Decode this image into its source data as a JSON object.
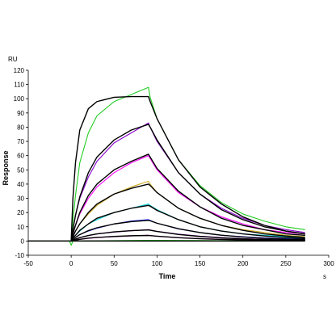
{
  "chart_data": {
    "type": "line",
    "title": "",
    "xlabel": "Time",
    "ylabel": "Response",
    "y_unit": "RU",
    "x_unit": "s",
    "xlim": [
      -50,
      300
    ],
    "ylim": [
      -10,
      120
    ],
    "x_ticks": [
      -50,
      0,
      50,
      100,
      150,
      200,
      250,
      300
    ],
    "y_ticks": [
      -10,
      0,
      10,
      20,
      30,
      40,
      50,
      60,
      70,
      80,
      90,
      100,
      110,
      120
    ],
    "grid": false,
    "legend": "none",
    "association_start": 0,
    "dissociation_start": 90,
    "end_time": 272,
    "colors": {
      "fit": "#000000",
      "series": [
        "#22cc22",
        "#8800cc",
        "#ff00ff",
        "#ccaa22",
        "#00cccc",
        "#2222ff",
        "#8800cc",
        "#ff00ff",
        "#22cc22"
      ]
    },
    "series": [
      {
        "values": [
          [
            0,
            0
          ],
          [
            2,
            14
          ],
          [
            5,
            32
          ],
          [
            10,
            55
          ],
          [
            20,
            76
          ],
          [
            30,
            88
          ],
          [
            50,
            98
          ],
          [
            70,
            103
          ],
          [
            90,
            108
          ],
          [
            92,
            101
          ],
          [
            100,
            86
          ],
          [
            125,
            57
          ],
          [
            150,
            39
          ],
          [
            175,
            27
          ],
          [
            200,
            19
          ],
          [
            225,
            14
          ],
          [
            250,
            10
          ],
          [
            272,
            8
          ]
        ]
      },
      {
        "values": [
          [
            0,
            0
          ],
          [
            2,
            8
          ],
          [
            5,
            18
          ],
          [
            10,
            30
          ],
          [
            20,
            45
          ],
          [
            30,
            56
          ],
          [
            50,
            69
          ],
          [
            70,
            76
          ],
          [
            90,
            83
          ],
          [
            92,
            80
          ],
          [
            100,
            70
          ],
          [
            125,
            48
          ],
          [
            150,
            33
          ],
          [
            175,
            23
          ],
          [
            200,
            16
          ],
          [
            225,
            11
          ],
          [
            250,
            8
          ],
          [
            272,
            6
          ]
        ]
      },
      {
        "values": [
          [
            0,
            0
          ],
          [
            2,
            5
          ],
          [
            5,
            11
          ],
          [
            10,
            19
          ],
          [
            20,
            30
          ],
          [
            30,
            38
          ],
          [
            50,
            48
          ],
          [
            70,
            55
          ],
          [
            90,
            60
          ],
          [
            92,
            58
          ],
          [
            100,
            50
          ],
          [
            125,
            34
          ],
          [
            150,
            24
          ],
          [
            175,
            17
          ],
          [
            200,
            12
          ],
          [
            225,
            8
          ],
          [
            250,
            6
          ],
          [
            272,
            5
          ]
        ]
      },
      {
        "values": [
          [
            0,
            0
          ],
          [
            2,
            3
          ],
          [
            5,
            7
          ],
          [
            10,
            12
          ],
          [
            20,
            19
          ],
          [
            30,
            25
          ],
          [
            50,
            33
          ],
          [
            70,
            38
          ],
          [
            90,
            42
          ],
          [
            92,
            40
          ],
          [
            100,
            34
          ],
          [
            125,
            23
          ],
          [
            150,
            16
          ],
          [
            175,
            11
          ],
          [
            200,
            8
          ],
          [
            225,
            6
          ],
          [
            250,
            4
          ],
          [
            272,
            3
          ]
        ]
      },
      {
        "values": [
          [
            0,
            0
          ],
          [
            2,
            2
          ],
          [
            5,
            4
          ],
          [
            10,
            7
          ],
          [
            20,
            12
          ],
          [
            30,
            15
          ],
          [
            50,
            20
          ],
          [
            70,
            23
          ],
          [
            90,
            26
          ],
          [
            92,
            25
          ],
          [
            100,
            22
          ],
          [
            125,
            15
          ],
          [
            150,
            10
          ],
          [
            175,
            7
          ],
          [
            200,
            5
          ],
          [
            225,
            4
          ],
          [
            250,
            3
          ],
          [
            272,
            2
          ]
        ]
      },
      {
        "values": [
          [
            0,
            0
          ],
          [
            2,
            1
          ],
          [
            5,
            2.5
          ],
          [
            10,
            4.5
          ],
          [
            20,
            7
          ],
          [
            30,
            9
          ],
          [
            50,
            12
          ],
          [
            70,
            14
          ],
          [
            90,
            15
          ],
          [
            92,
            14.5
          ],
          [
            100,
            12.5
          ],
          [
            125,
            8.5
          ],
          [
            150,
            6
          ],
          [
            175,
            4
          ],
          [
            200,
            3
          ],
          [
            225,
            2.2
          ],
          [
            250,
            1.6
          ],
          [
            272,
            1.2
          ]
        ]
      },
      {
        "values": [
          [
            0,
            0
          ],
          [
            2,
            0.6
          ],
          [
            5,
            1.3
          ],
          [
            10,
            2.3
          ],
          [
            20,
            3.8
          ],
          [
            30,
            4.9
          ],
          [
            50,
            6.3
          ],
          [
            70,
            7.2
          ],
          [
            90,
            8
          ],
          [
            92,
            7.7
          ],
          [
            100,
            6.8
          ],
          [
            125,
            4.8
          ],
          [
            150,
            3.4
          ],
          [
            175,
            2.4
          ],
          [
            200,
            1.7
          ],
          [
            225,
            1.2
          ],
          [
            250,
            0.9
          ],
          [
            272,
            0.7
          ]
        ]
      },
      {
        "values": [
          [
            0,
            0
          ],
          [
            2,
            0.3
          ],
          [
            5,
            0.7
          ],
          [
            10,
            1.2
          ],
          [
            20,
            1.9
          ],
          [
            30,
            2.4
          ],
          [
            50,
            3.1
          ],
          [
            70,
            3.6
          ],
          [
            90,
            4
          ],
          [
            92,
            3.9
          ],
          [
            100,
            3.4
          ],
          [
            125,
            2.4
          ],
          [
            150,
            1.7
          ],
          [
            175,
            1.2
          ],
          [
            200,
            0.9
          ],
          [
            225,
            0.6
          ],
          [
            250,
            0.5
          ],
          [
            272,
            0.4
          ]
        ]
      },
      {
        "values": [
          [
            -50,
            0
          ],
          [
            -20,
            0
          ],
          [
            -2,
            0
          ],
          [
            0,
            -3
          ],
          [
            2,
            0
          ],
          [
            90,
            0.5
          ],
          [
            272,
            0
          ]
        ]
      }
    ],
    "fits": [
      {
        "values": [
          [
            0,
            0
          ],
          [
            2,
            30
          ],
          [
            5,
            55
          ],
          [
            10,
            78
          ],
          [
            20,
            93
          ],
          [
            30,
            98
          ],
          [
            50,
            101
          ],
          [
            70,
            101.5
          ],
          [
            90,
            101.5
          ],
          [
            92,
            98
          ],
          [
            100,
            86
          ],
          [
            125,
            57
          ],
          [
            150,
            38
          ],
          [
            175,
            26
          ],
          [
            200,
            17
          ],
          [
            225,
            11
          ],
          [
            250,
            7
          ],
          [
            272,
            5
          ]
        ]
      },
      {
        "values": [
          [
            0,
            0
          ],
          [
            2,
            8
          ],
          [
            5,
            18
          ],
          [
            10,
            31
          ],
          [
            20,
            48
          ],
          [
            30,
            59
          ],
          [
            50,
            71
          ],
          [
            70,
            78
          ],
          [
            90,
            82
          ],
          [
            92,
            80
          ],
          [
            100,
            71
          ],
          [
            125,
            48
          ],
          [
            150,
            33
          ],
          [
            175,
            22
          ],
          [
            200,
            15
          ],
          [
            225,
            10
          ],
          [
            250,
            7
          ],
          [
            272,
            5
          ]
        ]
      },
      {
        "values": [
          [
            0,
            0
          ],
          [
            2,
            5
          ],
          [
            5,
            11
          ],
          [
            10,
            20
          ],
          [
            20,
            32
          ],
          [
            30,
            40
          ],
          [
            50,
            50
          ],
          [
            70,
            56
          ],
          [
            90,
            61
          ],
          [
            92,
            59
          ],
          [
            100,
            51
          ],
          [
            125,
            35
          ],
          [
            150,
            24
          ],
          [
            175,
            16
          ],
          [
            200,
            11
          ],
          [
            225,
            8
          ],
          [
            250,
            5
          ],
          [
            272,
            4
          ]
        ]
      },
      {
        "values": [
          [
            0,
            0
          ],
          [
            2,
            3
          ],
          [
            5,
            7
          ],
          [
            10,
            12
          ],
          [
            20,
            20
          ],
          [
            30,
            26
          ],
          [
            50,
            33
          ],
          [
            70,
            37
          ],
          [
            90,
            40
          ],
          [
            92,
            39
          ],
          [
            100,
            34
          ],
          [
            125,
            23
          ],
          [
            150,
            16
          ],
          [
            175,
            11
          ],
          [
            200,
            7.5
          ],
          [
            225,
            5
          ],
          [
            250,
            3.5
          ],
          [
            272,
            2.5
          ]
        ]
      },
      {
        "values": [
          [
            0,
            0
          ],
          [
            2,
            2
          ],
          [
            5,
            4
          ],
          [
            10,
            7.5
          ],
          [
            20,
            12
          ],
          [
            30,
            16
          ],
          [
            50,
            20
          ],
          [
            70,
            23
          ],
          [
            90,
            25
          ],
          [
            92,
            24.5
          ],
          [
            100,
            21.5
          ],
          [
            125,
            15
          ],
          [
            150,
            10
          ],
          [
            175,
            7
          ],
          [
            200,
            5
          ],
          [
            225,
            3.5
          ],
          [
            250,
            2.4
          ],
          [
            272,
            1.7
          ]
        ]
      },
      {
        "values": [
          [
            0,
            0
          ],
          [
            2,
            1
          ],
          [
            5,
            2.5
          ],
          [
            10,
            4.5
          ],
          [
            20,
            7.3
          ],
          [
            30,
            9.3
          ],
          [
            50,
            12
          ],
          [
            70,
            13.6
          ],
          [
            90,
            14.5
          ],
          [
            92,
            14.2
          ],
          [
            100,
            12.5
          ],
          [
            125,
            8.6
          ],
          [
            150,
            5.9
          ],
          [
            175,
            4.1
          ],
          [
            200,
            2.8
          ],
          [
            225,
            1.9
          ],
          [
            250,
            1.3
          ],
          [
            272,
            0.9
          ]
        ]
      },
      {
        "values": [
          [
            0,
            0
          ],
          [
            2,
            0.6
          ],
          [
            5,
            1.3
          ],
          [
            10,
            2.4
          ],
          [
            20,
            3.9
          ],
          [
            30,
            5
          ],
          [
            50,
            6.4
          ],
          [
            70,
            7.3
          ],
          [
            90,
            7.8
          ],
          [
            92,
            7.6
          ],
          [
            100,
            6.7
          ],
          [
            125,
            4.6
          ],
          [
            150,
            3.2
          ],
          [
            175,
            2.2
          ],
          [
            200,
            1.5
          ],
          [
            225,
            1
          ],
          [
            250,
            0.7
          ],
          [
            272,
            0.5
          ]
        ]
      },
      {
        "values": [
          [
            0,
            0
          ],
          [
            2,
            0.3
          ],
          [
            5,
            0.7
          ],
          [
            10,
            1.2
          ],
          [
            20,
            2
          ],
          [
            30,
            2.5
          ],
          [
            50,
            3.2
          ],
          [
            70,
            3.7
          ],
          [
            90,
            3.9
          ],
          [
            92,
            3.8
          ],
          [
            100,
            3.4
          ],
          [
            125,
            2.3
          ],
          [
            150,
            1.6
          ],
          [
            175,
            1.1
          ],
          [
            200,
            0.8
          ],
          [
            225,
            0.5
          ],
          [
            250,
            0.4
          ],
          [
            272,
            0.3
          ]
        ]
      },
      {
        "values": [
          [
            -50,
            0
          ],
          [
            0,
            0
          ],
          [
            272,
            0
          ]
        ]
      }
    ]
  }
}
